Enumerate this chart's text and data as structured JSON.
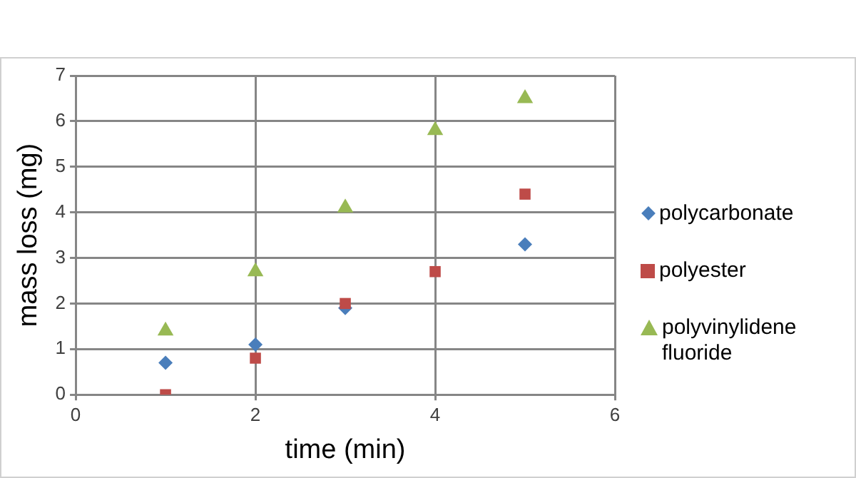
{
  "chart_data": {
    "type": "scatter",
    "xlabel": "time (min)",
    "ylabel": "mass loss (mg)",
    "xlim": [
      0,
      6
    ],
    "xticks": [
      0,
      2,
      4,
      6
    ],
    "ylim": [
      0,
      7
    ],
    "yticks": [
      0,
      1,
      2,
      3,
      4,
      5,
      6,
      7
    ],
    "grid": true,
    "legend": "right",
    "series": [
      {
        "name": "polycarbonate",
        "color": "#4a7ebb",
        "marker": "diamond",
        "x": [
          1,
          2,
          3,
          5
        ],
        "values": [
          0.7,
          1.1,
          1.9,
          3.3
        ]
      },
      {
        "name": "polyester",
        "color": "#be4b48",
        "marker": "square",
        "x": [
          1,
          2,
          3,
          4,
          5
        ],
        "values": [
          0,
          0.8,
          2.0,
          2.7,
          4.4
        ]
      },
      {
        "name": "polyvinylidene fluoride",
        "color": "#98b954",
        "marker": "triangle",
        "x": [
          1,
          2,
          3,
          4,
          5
        ],
        "values": [
          1.4,
          2.7,
          4.1,
          5.8,
          6.5
        ]
      }
    ]
  }
}
